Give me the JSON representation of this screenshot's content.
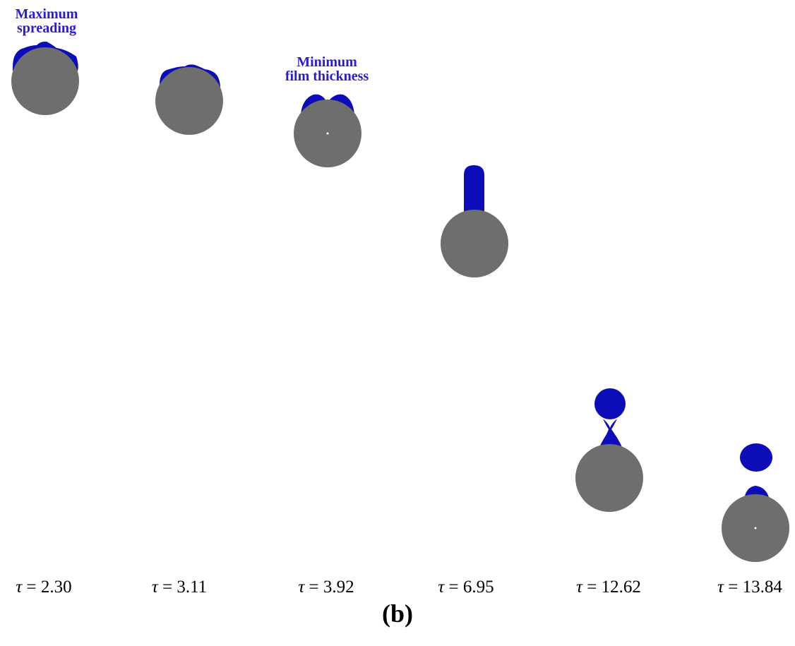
{
  "annotations": {
    "max_spreading": [
      "Maximum",
      "spreading"
    ],
    "min_film": [
      "Minimum",
      "film thickness"
    ]
  },
  "time_symbol": "τ",
  "time_labels": [
    "= 2.30",
    "= 3.11",
    "= 3.92",
    "= 6.95",
    "= 12.62",
    "= 13.84"
  ],
  "panel_label": "(b)",
  "colors": {
    "particle": "#6e6e6c",
    "droplet": "#0c0cb8",
    "annotation": "#2a1bd6",
    "background": "#ffffff"
  }
}
